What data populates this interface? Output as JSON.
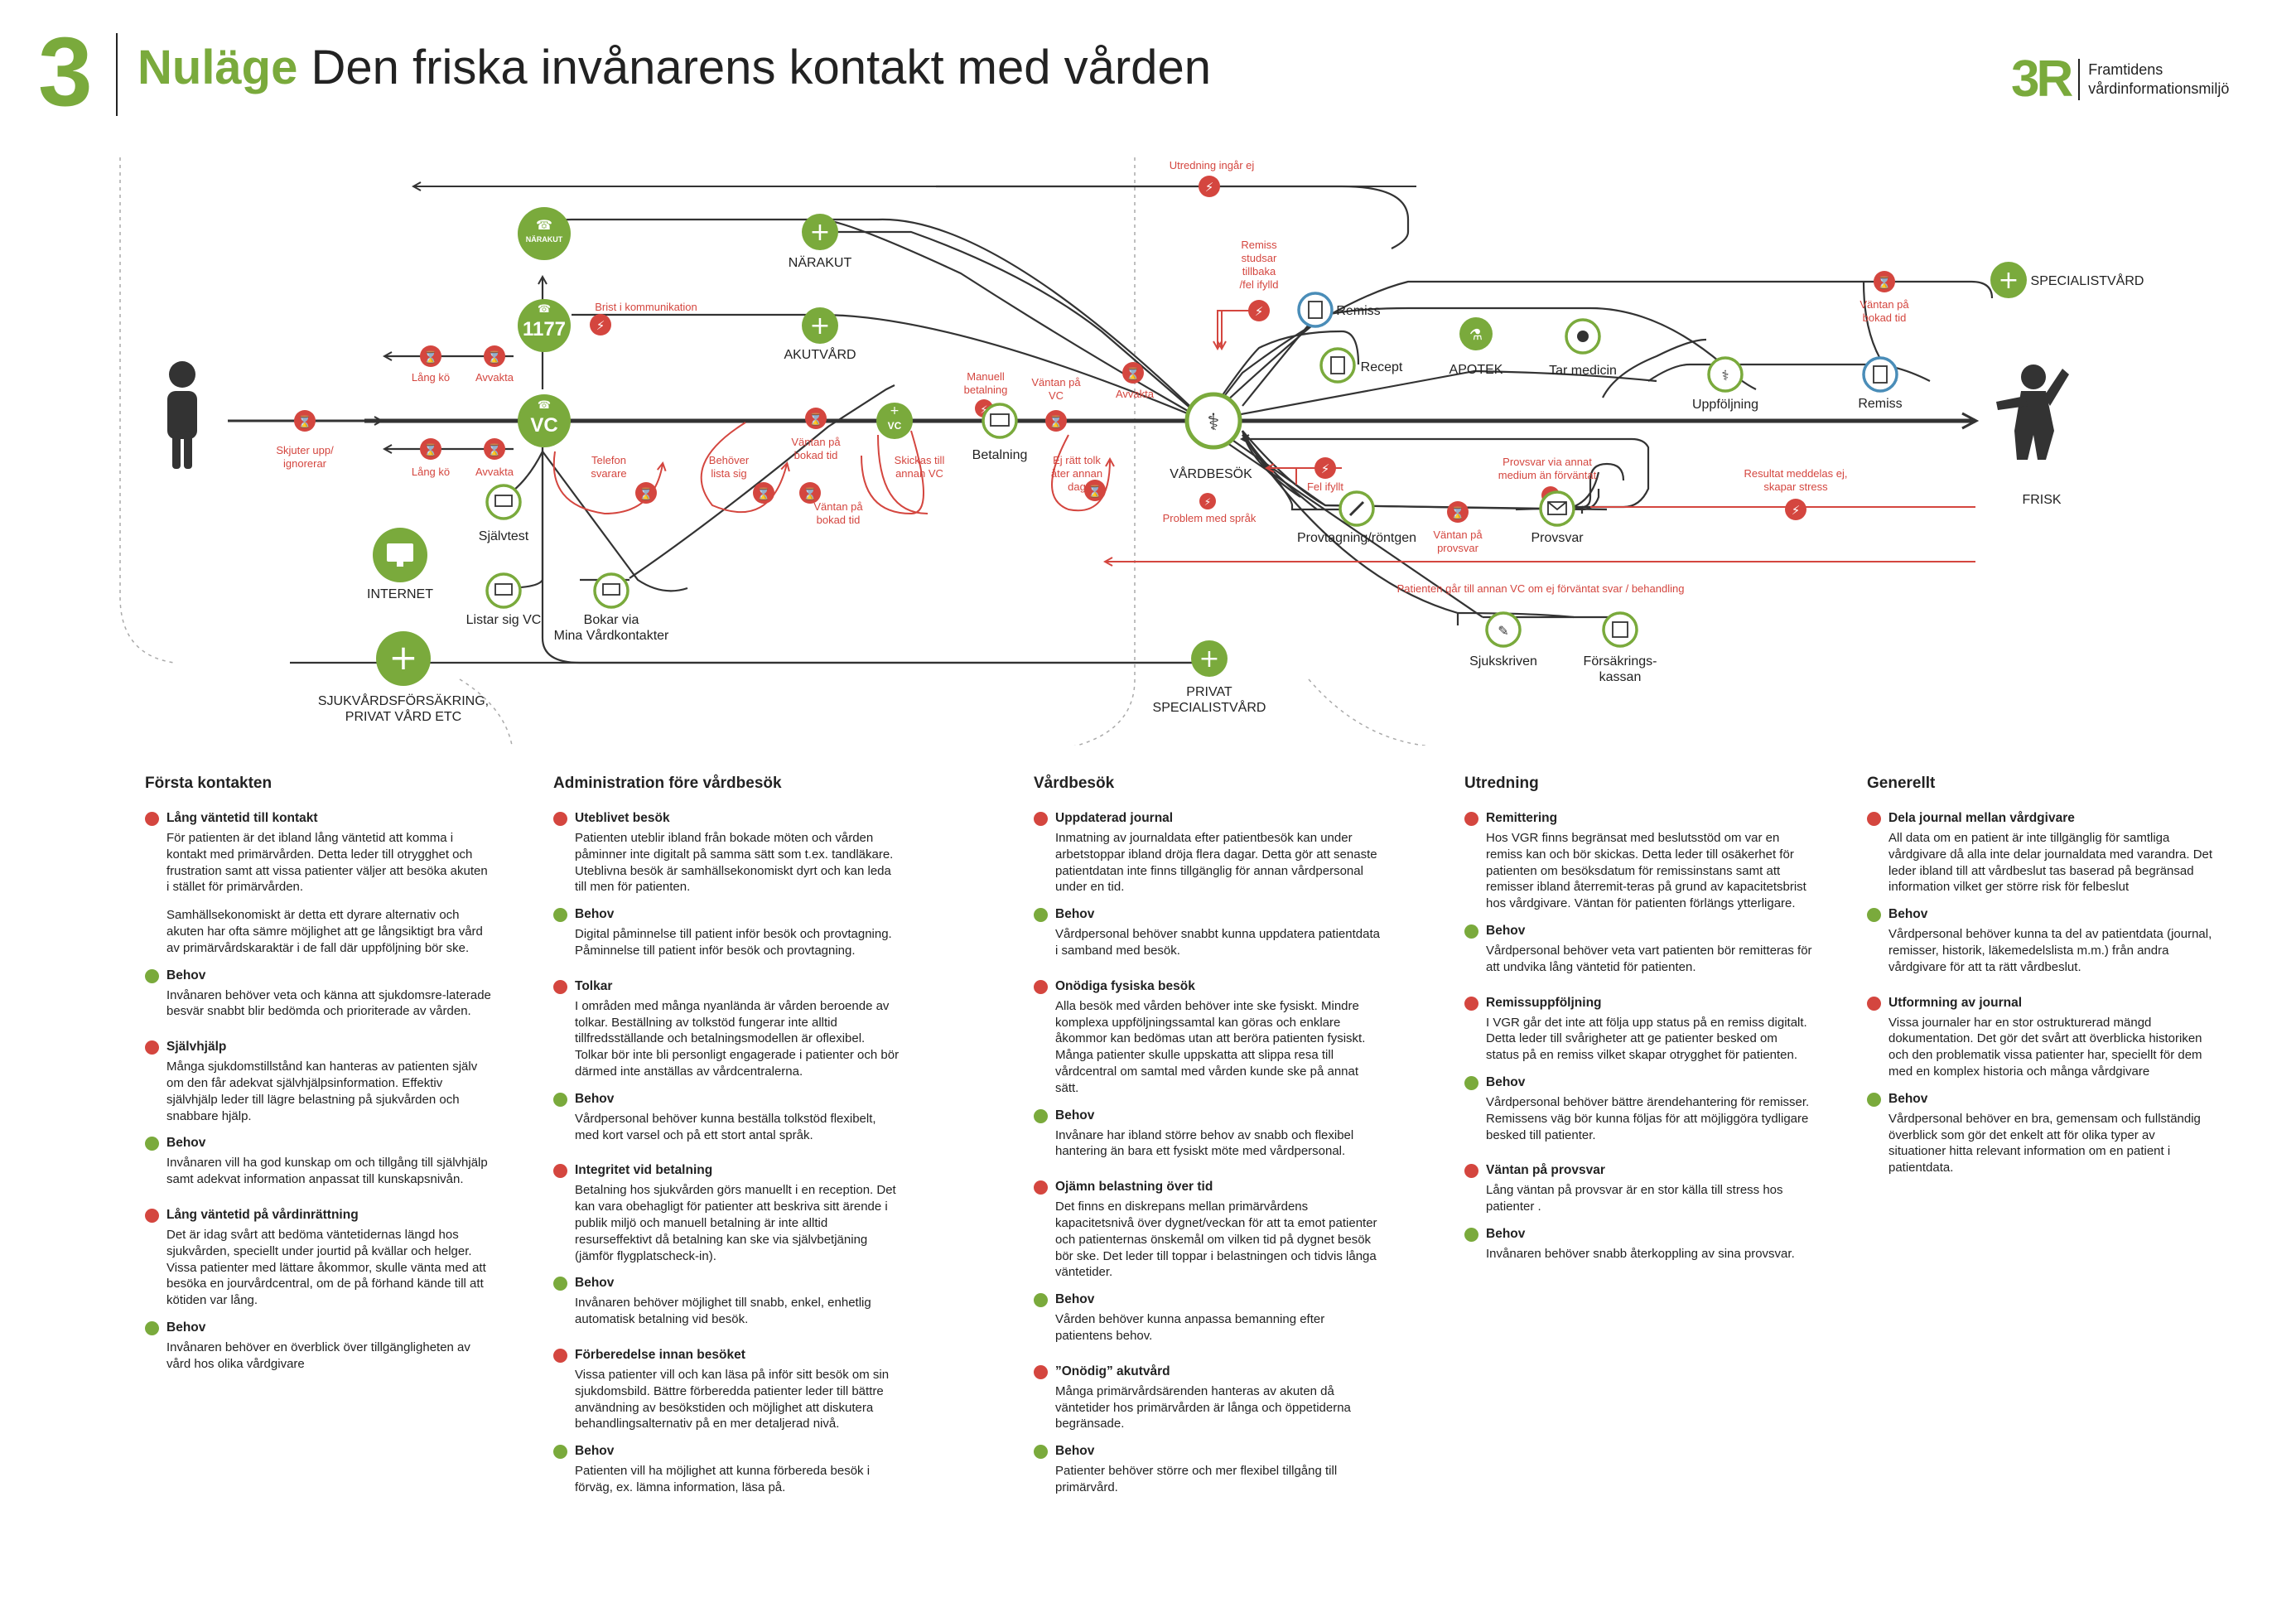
{
  "header": {
    "number": "3",
    "title_green": "Nuläge",
    "title_rest": "Den friska invånarens kontakt med vården",
    "logo_mark": "3R",
    "logo_line1": "Framtidens",
    "logo_line2": "vårdinformationsmiljö"
  },
  "colors": {
    "green": "#7aaa3c",
    "red": "#d4463f",
    "line": "#333333",
    "blue": "#4a8db8"
  },
  "nodes": {
    "narakut_phone": "NÄRAKUT",
    "num_1177": "1177",
    "vc": "VC",
    "vc_small": "VC",
    "narakut": "NÄRAKUT",
    "akutvard": "AKUTVÅRD",
    "sjalvtest": "Självtest",
    "internet": "INTERNET",
    "listar_sig_vc": "Listar sig VC",
    "bokar_via_1": "Bokar via",
    "bokar_via_2": "Mina Vårdkontakter",
    "sjukvard_1": "SJUKVÅRDSFÖRSÄKRING,",
    "sjukvard_2": "PRIVAT VÅRD ETC",
    "privat_1": "PRIVAT",
    "privat_2": "SPECIALISTVÅRD",
    "betalning": "Betalning",
    "vardbesok": "VÅRDBESÖK",
    "remiss": "Remiss",
    "recept": "Recept",
    "apotek": "APOTEK",
    "tar_medicin": "Tar medicin",
    "uppfoljning": "Uppföljning",
    "remiss2": "Remiss",
    "specialistvard": "SPECIALISTVÅRD",
    "provtagning": "Provtagning/röntgen",
    "provsvar": "Provsvar",
    "sjukskriven": "Sjukskriven",
    "forsakrings_1": "Försäkrings-",
    "forsakrings_2": "kassan",
    "frisk": "FRISK"
  },
  "labels": {
    "skjuter_upp_1": "Skjuter upp/",
    "skjuter_upp_2": "ignorerar",
    "lang_ko_1": "Lång kö",
    "avvakta_1": "Avvakta",
    "lang_ko_2": "Lång kö",
    "avvakta_2": "Avvakta",
    "brist": "Brist i kommunikation",
    "telefon_1": "Telefon",
    "telefon_2": "svarare",
    "behover_lista_1": "Behöver",
    "behover_lista_2": "lista sig",
    "vantan_bokad_1a": "Väntan på",
    "vantan_bokad_1b": "bokad tid",
    "vantan_bokad_2a": "Väntan på",
    "vantan_bokad_2b": "bokad tid",
    "skickas_1": "Skickas till",
    "skickas_2": "annan VC",
    "manuell_1": "Manuell",
    "manuell_2": "betalning",
    "vantan_vc_1": "Väntan på",
    "vantan_vc_2": "VC",
    "ej_ratt_1": "Ej rätt tolk",
    "ej_ratt_2": "åter annan",
    "ej_ratt_3": "dag",
    "avvakta_3": "Avvakta",
    "utredning": "Utredning ingår ej",
    "remiss_studsar_1": "Remiss",
    "remiss_studsar_2": "studsar",
    "remiss_studsar_3": "tillbaka",
    "remiss_studsar_4": "/fel ifylld",
    "problem_sprak": "Problem med språk",
    "fel_ifyllt": "Fel ifyllt",
    "vantan_provsvar_1": "Väntan på",
    "vantan_provsvar_2": "provsvar",
    "provsvar_annat_1": "Provsvar via annat",
    "provsvar_annat_2": "medium än förväntat",
    "resultat_1": "Resultat meddelas ej,",
    "resultat_2": "skapar stress",
    "vantan_bokad_3a": "Väntan på",
    "vantan_bokad_3b": "bokad tid",
    "patienten_gar": "Patienten går till annan VC om ej förväntat svar / behandling"
  },
  "columns": [
    {
      "heading": "Första kontakten",
      "items": [
        {
          "problem": "Lång väntetid till kontakt",
          "texts": [
            "För patienten är det ibland lång väntetid att komma i kontakt med primärvården. Detta leder till otrygghet och frustration samt att vissa patienter väljer att besöka akuten i stället för primärvården.",
            "Samhällsekonomiskt är detta ett dyrare alternativ och akuten har ofta sämre möjlighet att ge långsiktigt bra vård av primärvårdskaraktär i de fall där uppföljning bör ske."
          ],
          "need_label": "Behov",
          "need": "Invånaren behöver veta och känna att sjukdomsre-laterade besvär snabbt blir bedömda och prioriterade av vården."
        },
        {
          "problem": "Självhjälp",
          "texts": [
            "Många sjukdomstillstånd kan hanteras av patienten själv om den får adekvat självhjälpsinformation. Effektiv självhjälp leder till lägre belastning på sjukvården och snabbare hjälp."
          ],
          "need_label": "Behov",
          "need": "Invånaren vill ha god kunskap om och tillgång till självhjälp samt adekvat information anpassat till kunskapsnivån."
        },
        {
          "problem": "Lång väntetid på vårdinrättning",
          "texts": [
            "Det är idag svårt att bedöma väntetidernas längd hos sjukvården, speciellt under jourtid på kvällar och helger. Vissa patienter med lättare åkommor, skulle vänta med att besöka en jourvårdcentral, om de på förhand kände till att kötiden var lång."
          ],
          "need_label": "Behov",
          "need": "Invånaren behöver en överblick över tillgängligheten av vård hos olika vårdgivare"
        }
      ]
    },
    {
      "heading": "Administration före vårdbesök",
      "items": [
        {
          "problem": "Uteblivet besök",
          "texts": [
            "Patienten uteblir ibland från bokade möten och vården påminner inte digitalt på samma sätt som t.ex. tandläkare. Uteblivna besök är samhällsekonomiskt dyrt och kan leda till men för patienten."
          ],
          "need_label": "Behov",
          "need": "Digital påminnelse till patient inför besök och provtagning. Påminnelse till patient inför besök och provtagning."
        },
        {
          "problem": "Tolkar",
          "texts": [
            "I områden med många nyanlända är vården beroende av tolkar. Beställning av tolkstöd fungerar inte alltid tillfredsställande och betalningsmodellen är oflexibel. Tolkar bör inte bli personligt engagerade i patienter och bör därmed inte anställas av vårdcentralerna."
          ],
          "need_label": "Behov",
          "need": "Vårdpersonal behöver kunna beställa tolkstöd flexibelt, med kort varsel och på ett stort antal språk."
        },
        {
          "problem": "Integritet vid betalning",
          "texts": [
            "Betalning hos sjukvården görs manuellt i en reception. Det kan vara obehagligt för patienter att beskriva sitt ärende i publik miljö och manuell betalning är inte alltid resurseffektivt då betalning kan ske via självbetjäning (jämför flygplatscheck-in)."
          ],
          "need_label": "Behov",
          "need": "Invånaren behöver möjlighet till snabb, enkel, enhetlig automatisk betalning vid besök."
        },
        {
          "problem": "Förberedelse innan besöket",
          "texts": [
            "Vissa patienter vill och kan läsa på inför sitt besök om sin sjukdomsbild. Bättre förberedda patienter leder till bättre användning av besökstiden och möjlighet att diskutera behandlingsalternativ på en mer detaljerad nivå."
          ],
          "need_label": "Behov",
          "need": "Patienten vill ha möjlighet att kunna förbereda besök i förväg, ex. lämna information, läsa på."
        }
      ]
    },
    {
      "heading": "Vårdbesök",
      "items": [
        {
          "problem": "Uppdaterad journal",
          "texts": [
            "Inmatning av journaldata efter patientbesök kan under arbetstoppar ibland dröja flera dagar. Detta gör att senaste patientdatan inte finns tillgänglig för annan vårdpersonal under en tid."
          ],
          "need_label": "Behov",
          "need": "Vårdpersonal behöver snabbt kunna uppdatera patientdata i samband med besök."
        },
        {
          "problem": "Onödiga fysiska besök",
          "texts": [
            "Alla besök med vården behöver inte ske fysiskt. Mindre komplexa uppföljningssamtal kan göras och enklare åkommor kan bedömas utan att beröra patienten fysiskt. Många patienter skulle uppskatta att slippa resa till vårdcentral om samtal med vården kunde ske på annat sätt."
          ],
          "need_label": "Behov",
          "need": "Invånare har ibland större behov av snabb och flexibel hantering än bara ett fysiskt möte med vårdpersonal."
        },
        {
          "problem": "Ojämn belastning över tid",
          "texts": [
            "Det finns en diskrepans mellan primärvårdens kapacitetsnivå över dygnet/veckan för att ta emot patienter och patienternas önskemål om vilken tid på dygnet besök bör ske. Det leder till toppar i belastningen och tidvis långa väntetider."
          ],
          "need_label": "Behov",
          "need": "Vården behöver kunna anpassa bemanning efter patientens behov."
        },
        {
          "problem": "”Onödig” akutvård",
          "texts": [
            "Många primärvårdsärenden hanteras av akuten då väntetider hos primärvården är långa och öppetiderna begränsade."
          ],
          "need_label": "Behov",
          "need": "Patienter behöver större och mer flexibel tillgång till primärvård."
        }
      ]
    },
    {
      "heading": "Utredning",
      "items": [
        {
          "problem": "Remittering",
          "texts": [
            "Hos VGR finns begränsat med beslutsstöd om var en remiss kan och bör skickas. Detta leder till osäkerhet för patienten om besöksdatum för remissinstans samt att remisser ibland återremit-teras på grund av kapacitetsbrist hos vårdgivare. Väntan för patienten förlängs ytterligare."
          ],
          "need_label": "Behov",
          "need": "Vårdpersonal behöver veta vart patienten bör remitteras för att undvika lång väntetid för patienten."
        },
        {
          "problem": "Remissuppföljning",
          "texts": [
            "I VGR går det inte att följa upp status på en remiss digitalt. Detta leder till svårigheter att ge patienter besked om status på en remiss vilket skapar otrygghet för patienten."
          ],
          "need_label": "Behov",
          "need": "Vårdpersonal behöver bättre ärendehantering för remisser. Remissens väg bör kunna följas för att möjliggöra tydligare besked till patienter."
        },
        {
          "problem": "Väntan på provsvar",
          "texts": [
            "Lång väntan på provsvar är en stor källa till stress hos patienter ."
          ],
          "need_label": "Behov",
          "need": "Invånaren behöver snabb återkoppling av sina provsvar."
        }
      ]
    },
    {
      "heading": "Generellt",
      "items": [
        {
          "problem": "Dela journal mellan vårdgivare",
          "texts": [
            "All data om en patient är inte tillgänglig för samtliga vårdgivare då alla inte delar journaldata med varandra. Det leder ibland till att vårdbeslut tas baserad på begränsad information vilket ger större risk för felbeslut"
          ],
          "need_label": "Behov",
          "need": "Vårdpersonal behöver kunna ta del av patientdata (journal, remisser, historik, läkemedelslista m.m.) från andra vårdgivare för att ta rätt vårdbeslut."
        },
        {
          "problem": "Utformning av journal",
          "texts": [
            "Vissa journaler har en stor ostrukturerad mängd dokumentation. Det gör det svårt att överblicka historiken och den problematik vissa patienter har, speciellt för dem med en komplex historia och många vårdgivare"
          ],
          "need_label": "Behov",
          "need": "Vårdpersonal behöver en bra, gemensam och fullständig överblick som gör det enkelt att för olika typer av situationer hitta relevant information om en patient i patientdata."
        }
      ]
    }
  ]
}
